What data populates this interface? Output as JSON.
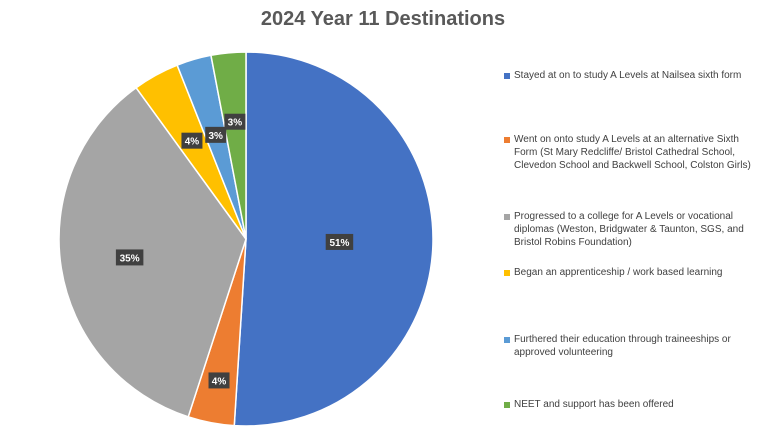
{
  "title": "2024 Year 11 Destinations",
  "chart_data": {
    "type": "pie",
    "title": "2024 Year 11 Destinations",
    "legend_position": "right",
    "slices": [
      {
        "label": "Stayed at on to study A Levels at Nailsea sixth form",
        "value": 51,
        "data_label": "51%",
        "color": "#4472C4"
      },
      {
        "label": "Went on onto study A Levels at an alternative Sixth Form (St Mary Redcliffe/ Bristol Cathedral School, Clevedon School and Backwell School, Colston Girls)",
        "value": 4,
        "data_label": "4%",
        "color": "#ED7D31"
      },
      {
        "label": "Progressed to a college for A Levels or vocational diplomas (Weston, Bridgwater & Taunton, SGS, and Bristol Robins Foundation)",
        "value": 35,
        "data_label": "35%",
        "color": "#A5A5A5"
      },
      {
        "label": "Began an apprenticeship / work based learning",
        "value": 4,
        "data_label": "4%",
        "color": "#FFC000"
      },
      {
        "label": "Furthered their education through traineeships or approved volunteering",
        "value": 3,
        "data_label": "3%",
        "color": "#5B9BD5"
      },
      {
        "label": "NEET and support has been offered",
        "value": 3,
        "data_label": "3%",
        "color": "#70AD47"
      }
    ]
  },
  "legend": {
    "items": [
      {
        "text": "Stayed at on to study A Levels at Nailsea sixth form",
        "color": "#4472C4"
      },
      {
        "text": "Went on onto study A Levels at an alternative Sixth Form (St Mary Redcliffe/ Bristol Cathedral School, Clevedon School and Backwell School, Colston Girls)",
        "color": "#ED7D31"
      },
      {
        "text": "Progressed to a college for A Levels or vocational diplomas (Weston, Bridgwater & Taunton, SGS, and Bristol Robins Foundation)",
        "color": "#A5A5A5"
      },
      {
        "text": "Began an apprenticeship / work based learning",
        "color": "#FFC000"
      },
      {
        "text": "Furthered their education through traineeships or approved volunteering",
        "color": "#5B9BD5"
      },
      {
        "text": "NEET and support has been offered",
        "color": "#70AD47"
      }
    ]
  }
}
